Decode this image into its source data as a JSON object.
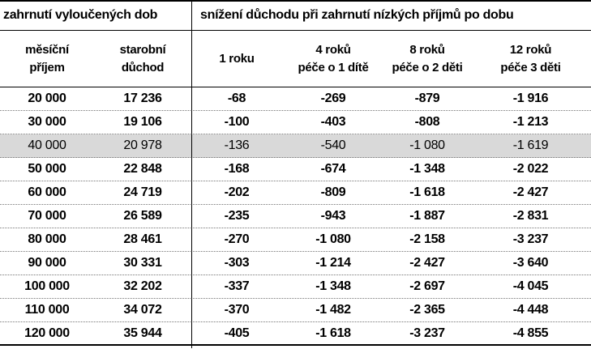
{
  "header": {
    "group_left": "zahrnutí vyloučených dob",
    "group_right": "snížení důchodu při zahrnutí nízkých příjmů po dobu",
    "columns": [
      {
        "line1": "měsíční",
        "line2": "příjem"
      },
      {
        "line1": "starobní",
        "line2": "důchod"
      },
      {
        "line1": "1 roku",
        "line2": ""
      },
      {
        "line1": "4 roků",
        "line2": "péče o 1 dítě"
      },
      {
        "line1": "8 roků",
        "line2": "péče o 2 děti"
      },
      {
        "line1": "12 roků",
        "line2": "péče 3 děti"
      }
    ]
  },
  "highlight_color": "#d9d9d9",
  "rows": [
    [
      "20 000",
      "17 236",
      "-68",
      "-269",
      "-879",
      "-1 916"
    ],
    [
      "30 000",
      "19 106",
      "-100",
      "-403",
      "-808",
      "-1 213"
    ],
    [
      "40 000",
      "20 978",
      "-136",
      "-540",
      "-1 080",
      "-1 619"
    ],
    [
      "50 000",
      "22 848",
      "-168",
      "-674",
      "-1 348",
      "-2 022"
    ],
    [
      "60 000",
      "24 719",
      "-202",
      "-809",
      "-1 618",
      "-2 427"
    ],
    [
      "70 000",
      "26 589",
      "-235",
      "-943",
      "-1 887",
      "-2 831"
    ],
    [
      "80 000",
      "28 461",
      "-270",
      "-1 080",
      "-2 158",
      "-3 237"
    ],
    [
      "90 000",
      "30 331",
      "-303",
      "-1 214",
      "-2 427",
      "-3 640"
    ],
    [
      "100 000",
      "32 202",
      "-337",
      "-1 348",
      "-2 697",
      "-4 045"
    ],
    [
      "110 000",
      "34 072",
      "-370",
      "-1 482",
      "-2 365",
      "-4 448"
    ],
    [
      "120 000",
      "35 944",
      "-405",
      "-1 618",
      "-3 237",
      "-4 855"
    ]
  ],
  "highlighted_row": 2
}
